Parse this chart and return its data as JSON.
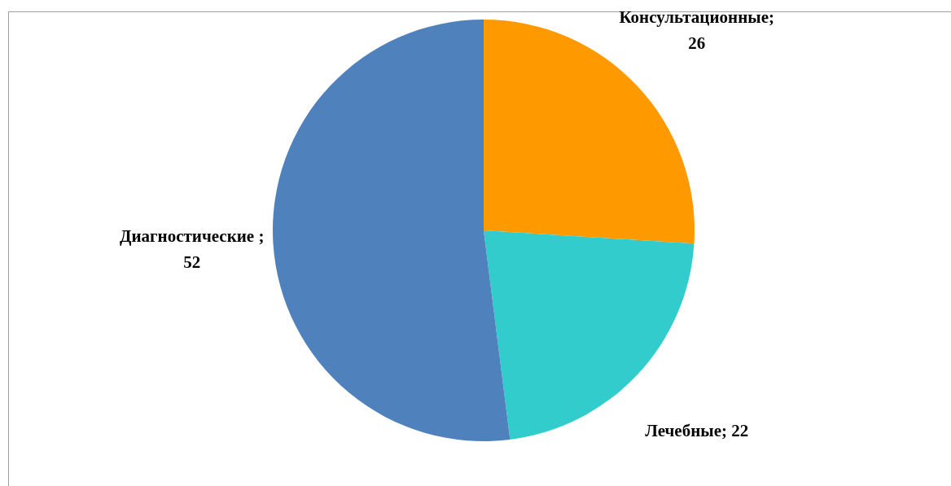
{
  "chart_data": {
    "type": "pie",
    "categories": [
      "Консультационные",
      "Лечебные",
      "Диагностические "
    ],
    "values": [
      26,
      22,
      52
    ],
    "value_labels": [
      "; 26",
      "; 22",
      "; 52"
    ],
    "colors": [
      "#ff9900",
      "#33cccc",
      "#4f81bd"
    ]
  }
}
